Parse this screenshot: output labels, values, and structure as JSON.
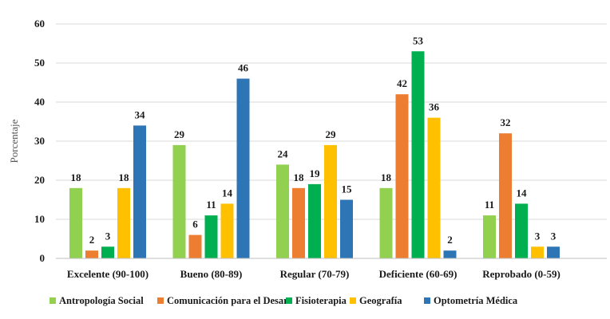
{
  "chart_data": {
    "type": "bar",
    "title": "",
    "xlabel": "",
    "ylabel": "Porcentaje",
    "ylim": [
      0,
      60
    ],
    "yticks": [
      0,
      10,
      20,
      30,
      40,
      50,
      60
    ],
    "grid": true,
    "legend_position": "bottom",
    "categories": [
      "Excelente (90-100)",
      "Bueno (80-89)",
      "Regular (70-79)",
      "Deficiente (60-69)",
      "Reprobado (0-59)"
    ],
    "series": [
      {
        "name": "Antropología Social",
        "color": "#92d050",
        "values": [
          18,
          29,
          24,
          18,
          11
        ]
      },
      {
        "name": "Comunicación para el Desar",
        "color": "#ed7d31",
        "values": [
          2,
          6,
          18,
          42,
          32
        ]
      },
      {
        "name": "Fisioterapia",
        "color": "#00b050",
        "values": [
          3,
          11,
          19,
          53,
          14
        ]
      },
      {
        "name": "Geografía",
        "color": "#ffc000",
        "values": [
          18,
          14,
          29,
          36,
          3
        ]
      },
      {
        "name": "Optometría Médica",
        "color": "#2e75b6",
        "values": [
          34,
          46,
          15,
          2,
          3
        ]
      }
    ]
  }
}
